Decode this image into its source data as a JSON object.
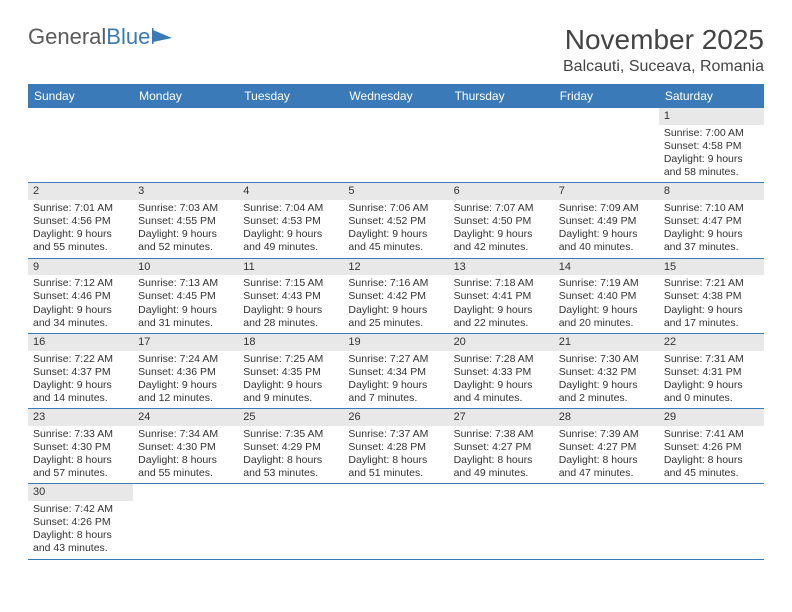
{
  "logo": {
    "text_general": "General",
    "text_blue": "Blue"
  },
  "title": "November 2025",
  "location": "Balcauti, Suceava, Romania",
  "colors": {
    "header_bg": "#3a7ab8",
    "header_text": "#ffffff",
    "daynum_bg": "#e8e8e8",
    "rule": "#3a7ab8",
    "text": "#333333",
    "logo_gray": "#5a5a5a",
    "logo_blue": "#3a7ab8"
  },
  "weekdays": [
    "Sunday",
    "Monday",
    "Tuesday",
    "Wednesday",
    "Thursday",
    "Friday",
    "Saturday"
  ],
  "weeks": [
    [
      null,
      null,
      null,
      null,
      null,
      null,
      {
        "n": "1",
        "sunrise": "Sunrise: 7:00 AM",
        "sunset": "Sunset: 4:58 PM",
        "daylight": "Daylight: 9 hours and 58 minutes."
      }
    ],
    [
      {
        "n": "2",
        "sunrise": "Sunrise: 7:01 AM",
        "sunset": "Sunset: 4:56 PM",
        "daylight": "Daylight: 9 hours and 55 minutes."
      },
      {
        "n": "3",
        "sunrise": "Sunrise: 7:03 AM",
        "sunset": "Sunset: 4:55 PM",
        "daylight": "Daylight: 9 hours and 52 minutes."
      },
      {
        "n": "4",
        "sunrise": "Sunrise: 7:04 AM",
        "sunset": "Sunset: 4:53 PM",
        "daylight": "Daylight: 9 hours and 49 minutes."
      },
      {
        "n": "5",
        "sunrise": "Sunrise: 7:06 AM",
        "sunset": "Sunset: 4:52 PM",
        "daylight": "Daylight: 9 hours and 45 minutes."
      },
      {
        "n": "6",
        "sunrise": "Sunrise: 7:07 AM",
        "sunset": "Sunset: 4:50 PM",
        "daylight": "Daylight: 9 hours and 42 minutes."
      },
      {
        "n": "7",
        "sunrise": "Sunrise: 7:09 AM",
        "sunset": "Sunset: 4:49 PM",
        "daylight": "Daylight: 9 hours and 40 minutes."
      },
      {
        "n": "8",
        "sunrise": "Sunrise: 7:10 AM",
        "sunset": "Sunset: 4:47 PM",
        "daylight": "Daylight: 9 hours and 37 minutes."
      }
    ],
    [
      {
        "n": "9",
        "sunrise": "Sunrise: 7:12 AM",
        "sunset": "Sunset: 4:46 PM",
        "daylight": "Daylight: 9 hours and 34 minutes."
      },
      {
        "n": "10",
        "sunrise": "Sunrise: 7:13 AM",
        "sunset": "Sunset: 4:45 PM",
        "daylight": "Daylight: 9 hours and 31 minutes."
      },
      {
        "n": "11",
        "sunrise": "Sunrise: 7:15 AM",
        "sunset": "Sunset: 4:43 PM",
        "daylight": "Daylight: 9 hours and 28 minutes."
      },
      {
        "n": "12",
        "sunrise": "Sunrise: 7:16 AM",
        "sunset": "Sunset: 4:42 PM",
        "daylight": "Daylight: 9 hours and 25 minutes."
      },
      {
        "n": "13",
        "sunrise": "Sunrise: 7:18 AM",
        "sunset": "Sunset: 4:41 PM",
        "daylight": "Daylight: 9 hours and 22 minutes."
      },
      {
        "n": "14",
        "sunrise": "Sunrise: 7:19 AM",
        "sunset": "Sunset: 4:40 PM",
        "daylight": "Daylight: 9 hours and 20 minutes."
      },
      {
        "n": "15",
        "sunrise": "Sunrise: 7:21 AM",
        "sunset": "Sunset: 4:38 PM",
        "daylight": "Daylight: 9 hours and 17 minutes."
      }
    ],
    [
      {
        "n": "16",
        "sunrise": "Sunrise: 7:22 AM",
        "sunset": "Sunset: 4:37 PM",
        "daylight": "Daylight: 9 hours and 14 minutes."
      },
      {
        "n": "17",
        "sunrise": "Sunrise: 7:24 AM",
        "sunset": "Sunset: 4:36 PM",
        "daylight": "Daylight: 9 hours and 12 minutes."
      },
      {
        "n": "18",
        "sunrise": "Sunrise: 7:25 AM",
        "sunset": "Sunset: 4:35 PM",
        "daylight": "Daylight: 9 hours and 9 minutes."
      },
      {
        "n": "19",
        "sunrise": "Sunrise: 7:27 AM",
        "sunset": "Sunset: 4:34 PM",
        "daylight": "Daylight: 9 hours and 7 minutes."
      },
      {
        "n": "20",
        "sunrise": "Sunrise: 7:28 AM",
        "sunset": "Sunset: 4:33 PM",
        "daylight": "Daylight: 9 hours and 4 minutes."
      },
      {
        "n": "21",
        "sunrise": "Sunrise: 7:30 AM",
        "sunset": "Sunset: 4:32 PM",
        "daylight": "Daylight: 9 hours and 2 minutes."
      },
      {
        "n": "22",
        "sunrise": "Sunrise: 7:31 AM",
        "sunset": "Sunset: 4:31 PM",
        "daylight": "Daylight: 9 hours and 0 minutes."
      }
    ],
    [
      {
        "n": "23",
        "sunrise": "Sunrise: 7:33 AM",
        "sunset": "Sunset: 4:30 PM",
        "daylight": "Daylight: 8 hours and 57 minutes."
      },
      {
        "n": "24",
        "sunrise": "Sunrise: 7:34 AM",
        "sunset": "Sunset: 4:30 PM",
        "daylight": "Daylight: 8 hours and 55 minutes."
      },
      {
        "n": "25",
        "sunrise": "Sunrise: 7:35 AM",
        "sunset": "Sunset: 4:29 PM",
        "daylight": "Daylight: 8 hours and 53 minutes."
      },
      {
        "n": "26",
        "sunrise": "Sunrise: 7:37 AM",
        "sunset": "Sunset: 4:28 PM",
        "daylight": "Daylight: 8 hours and 51 minutes."
      },
      {
        "n": "27",
        "sunrise": "Sunrise: 7:38 AM",
        "sunset": "Sunset: 4:27 PM",
        "daylight": "Daylight: 8 hours and 49 minutes."
      },
      {
        "n": "28",
        "sunrise": "Sunrise: 7:39 AM",
        "sunset": "Sunset: 4:27 PM",
        "daylight": "Daylight: 8 hours and 47 minutes."
      },
      {
        "n": "29",
        "sunrise": "Sunrise: 7:41 AM",
        "sunset": "Sunset: 4:26 PM",
        "daylight": "Daylight: 8 hours and 45 minutes."
      }
    ],
    [
      {
        "n": "30",
        "sunrise": "Sunrise: 7:42 AM",
        "sunset": "Sunset: 4:26 PM",
        "daylight": "Daylight: 8 hours and 43 minutes."
      },
      null,
      null,
      null,
      null,
      null,
      null
    ]
  ]
}
